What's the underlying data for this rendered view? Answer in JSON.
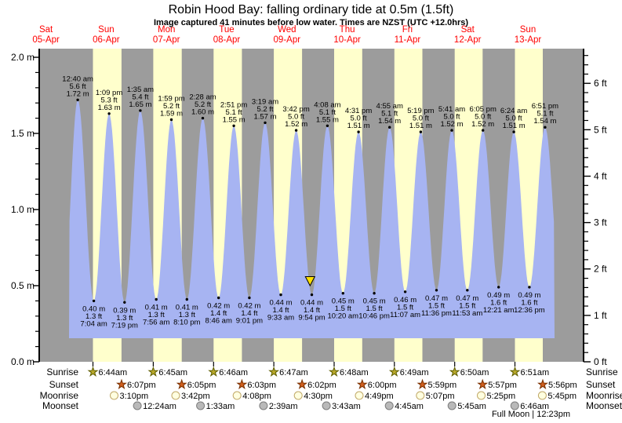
{
  "page": {
    "title": "Robin Hood Bay: falling  ordinary tide at 0.5m (1.5ft)",
    "subtitle": "Image captured 41 minutes before low water. Times are NZST (UTC +12.0hrs)"
  },
  "chart_data": {
    "type": "area",
    "title": "Robin Hood Bay: falling  ordinary tide at 0.5m (1.5ft)",
    "subtitle": "Image captured 41 minutes before low water. Times are NZST (UTC +12.0hrs)",
    "x_axis": {
      "days": [
        {
          "name": "Sat",
          "date": "05-Apr"
        },
        {
          "name": "Sun",
          "date": "06-Apr"
        },
        {
          "name": "Mon",
          "date": "07-Apr"
        },
        {
          "name": "Tue",
          "date": "08-Apr"
        },
        {
          "name": "Wed",
          "date": "09-Apr"
        },
        {
          "name": "Thu",
          "date": "10-Apr"
        },
        {
          "name": "Fri",
          "date": "11-Apr"
        },
        {
          "name": "Sat",
          "date": "12-Apr"
        },
        {
          "name": "Sun",
          "date": "13-Apr"
        }
      ]
    },
    "y_axis_left": {
      "unit": "m",
      "tick_labels": [
        "0.0 m",
        "0.5 m",
        "1.0 m",
        "1.5 m",
        "2.0 m"
      ],
      "range_m": [
        0,
        2.05
      ]
    },
    "y_axis_right": {
      "unit": "ft",
      "tick_labels": [
        "0 ft",
        "1 ft",
        "2 ft",
        "3 ft",
        "4 ft",
        "5 ft",
        "6 ft"
      ],
      "range_ft": [
        0,
        6.7
      ]
    },
    "high_tides": [
      {
        "day": 1,
        "time": "12:40 am",
        "height_ft": "5.6",
        "height_m": "1.72"
      },
      {
        "day": 1,
        "time": "1:09 pm",
        "height_ft": "5.3",
        "height_m": "1.63"
      },
      {
        "day": 2,
        "time": "1:35 am",
        "height_ft": "5.4",
        "height_m": "1.65"
      },
      {
        "day": 2,
        "time": "1:59 pm",
        "height_ft": "5.2",
        "height_m": "1.59"
      },
      {
        "day": 3,
        "time": "2:28 am",
        "height_ft": "5.2",
        "height_m": "1.60"
      },
      {
        "day": 3,
        "time": "2:51 pm",
        "height_ft": "5.1",
        "height_m": "1.55"
      },
      {
        "day": 4,
        "time": "3:19 am",
        "height_ft": "5.2",
        "height_m": "1.57"
      },
      {
        "day": 4,
        "time": "3:42 pm",
        "height_ft": "5.0",
        "height_m": "1.52"
      },
      {
        "day": 5,
        "time": "4:08 am",
        "height_ft": "5.1",
        "height_m": "1.55"
      },
      {
        "day": 5,
        "time": "4:31 pm",
        "height_ft": "5.0",
        "height_m": "1.51"
      },
      {
        "day": 6,
        "time": "4:55 am",
        "height_ft": "5.1",
        "height_m": "1.54"
      },
      {
        "day": 6,
        "time": "5:19 pm",
        "height_ft": "5.0",
        "height_m": "1.51"
      },
      {
        "day": 7,
        "time": "5:41 am",
        "height_ft": "5.0",
        "height_m": "1.52"
      },
      {
        "day": 7,
        "time": "6:05 pm",
        "height_ft": "5.0",
        "height_m": "1.52"
      },
      {
        "day": 8,
        "time": "6:24 am",
        "height_ft": "5.0",
        "height_m": "1.51"
      },
      {
        "day": 8,
        "time": "6:51 pm",
        "height_ft": "5.1",
        "height_m": "1.54"
      }
    ],
    "low_tides": [
      {
        "day": 1,
        "time": "7:04 am",
        "height_ft": "1.3",
        "height_m": "0.40"
      },
      {
        "day": 1,
        "time": "7:19 pm",
        "height_ft": "1.3",
        "height_m": "0.39"
      },
      {
        "day": 2,
        "time": "7:56 am",
        "height_ft": "1.3",
        "height_m": "0.41"
      },
      {
        "day": 2,
        "time": "8:10 pm",
        "height_ft": "1.3",
        "height_m": "0.41"
      },
      {
        "day": 3,
        "time": "8:46 am",
        "height_ft": "1.4",
        "height_m": "0.42"
      },
      {
        "day": 3,
        "time": "9:01 pm",
        "height_ft": "1.4",
        "height_m": "0.42"
      },
      {
        "day": 4,
        "time": "9:33 am",
        "height_ft": "1.4",
        "height_m": "0.44"
      },
      {
        "day": 4,
        "time": "9:54 pm",
        "height_ft": "1.4",
        "height_m": "0.44"
      },
      {
        "day": 5,
        "time": "10:20 am",
        "height_ft": "1.5",
        "height_m": "0.45"
      },
      {
        "day": 5,
        "time": "10:46 pm",
        "height_ft": "1.5",
        "height_m": "0.45"
      },
      {
        "day": 6,
        "time": "11:07 am",
        "height_ft": "1.5",
        "height_m": "0.46"
      },
      {
        "day": 6,
        "time": "11:36 pm",
        "height_ft": "1.5",
        "height_m": "0.47"
      },
      {
        "day": 7,
        "time": "11:53 am",
        "height_ft": "1.5",
        "height_m": "0.47"
      },
      {
        "day": 8,
        "time": "12:21 am",
        "height_ft": "1.6",
        "height_m": "0.49"
      },
      {
        "day": 8,
        "time": "12:36 pm",
        "height_ft": "1.6",
        "height_m": "0.49"
      }
    ],
    "current_marker": {
      "day": 4,
      "time": "9:13 pm",
      "height_m": 0.5
    },
    "astro": {
      "row_labels": [
        "Sunrise",
        "Sunset",
        "Moonrise",
        "Moonset"
      ],
      "sunrise": [
        {
          "day": 1,
          "time": "6:44am"
        },
        {
          "day": 2,
          "time": "6:45am"
        },
        {
          "day": 3,
          "time": "6:46am"
        },
        {
          "day": 4,
          "time": "6:47am"
        },
        {
          "day": 5,
          "time": "6:48am"
        },
        {
          "day": 6,
          "time": "6:49am"
        },
        {
          "day": 7,
          "time": "6:50am"
        },
        {
          "day": 8,
          "time": "6:51am"
        }
      ],
      "sunset": [
        {
          "day": 1,
          "time": "6:07pm"
        },
        {
          "day": 2,
          "time": "6:05pm"
        },
        {
          "day": 3,
          "time": "6:03pm"
        },
        {
          "day": 4,
          "time": "6:02pm"
        },
        {
          "day": 5,
          "time": "6:00pm"
        },
        {
          "day": 6,
          "time": "5:59pm"
        },
        {
          "day": 7,
          "time": "5:57pm"
        },
        {
          "day": 8,
          "time": "5:56pm"
        }
      ],
      "moonrise": [
        {
          "day": 1,
          "time": "3:10pm"
        },
        {
          "day": 2,
          "time": "3:42pm"
        },
        {
          "day": 3,
          "time": "4:08pm"
        },
        {
          "day": 4,
          "time": "4:30pm"
        },
        {
          "day": 5,
          "time": "4:49pm"
        },
        {
          "day": 6,
          "time": "5:07pm"
        },
        {
          "day": 7,
          "time": "5:25pm"
        },
        {
          "day": 8,
          "time": "5:45pm"
        }
      ],
      "moonset": [
        {
          "day": 2,
          "time": "12:24am"
        },
        {
          "day": 3,
          "time": "1:33am"
        },
        {
          "day": 4,
          "time": "2:39am"
        },
        {
          "day": 5,
          "time": "3:43am"
        },
        {
          "day": 6,
          "time": "4:45am"
        },
        {
          "day": 7,
          "time": "5:45am"
        },
        {
          "day": 8,
          "time": "6:46am"
        }
      ],
      "full_moon": "Full Moon | 12:23pm"
    },
    "colors": {
      "night_band": "#9c9c9c",
      "day_band": "#ffffcc",
      "water": "#a7b4f2",
      "date_label": "#ff0000",
      "marker": "#ffe000",
      "sunrise_icon": "#b9a82b",
      "sunset_icon": "#cf5f1e",
      "moonrise_icon": "#ffffe0",
      "moonset_icon": "#b9b9b9"
    }
  }
}
